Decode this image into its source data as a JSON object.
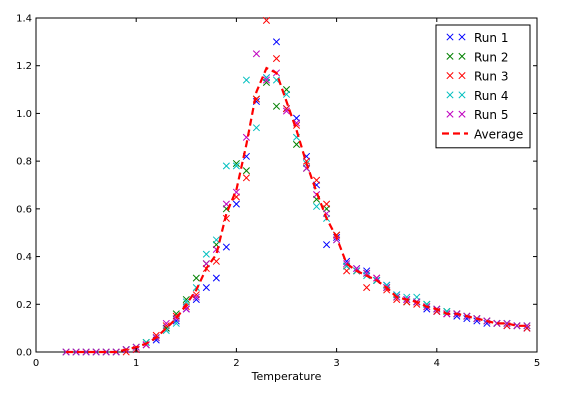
{
  "chart_data": {
    "type": "scatter",
    "xlabel": "Temperature",
    "ylabel": "",
    "xlim": [
      0,
      5
    ],
    "ylim": [
      0,
      1.4
    ],
    "xticks": [
      0,
      1,
      2,
      3,
      4,
      5
    ],
    "yticks": [
      0.0,
      0.2,
      0.4,
      0.6,
      0.8,
      1.0,
      1.2,
      1.4
    ],
    "grid": false,
    "legend_position": "top-right",
    "series": [
      {
        "name": "Run 1",
        "color": "#0000ff",
        "marker": "x",
        "x": [
          0.3,
          0.4,
          0.5,
          0.6,
          0.7,
          0.8,
          0.9,
          1.0,
          1.1,
          1.2,
          1.3,
          1.4,
          1.5,
          1.6,
          1.7,
          1.8,
          1.9,
          2.0,
          2.1,
          2.2,
          2.3,
          2.4,
          2.5,
          2.6,
          2.7,
          2.8,
          2.9,
          3.0,
          3.1,
          3.2,
          3.3,
          3.4,
          3.5,
          3.6,
          3.7,
          3.8,
          3.9,
          4.0,
          4.1,
          4.2,
          4.3,
          4.4,
          4.5,
          4.6,
          4.7,
          4.8,
          4.9
        ],
        "y": [
          0.0,
          0.0,
          0.0,
          0.0,
          0.0,
          0.0,
          0.01,
          0.01,
          0.03,
          0.05,
          0.1,
          0.13,
          0.18,
          0.22,
          0.27,
          0.31,
          0.44,
          0.62,
          0.82,
          1.05,
          1.15,
          1.3,
          1.02,
          0.98,
          0.82,
          0.7,
          0.45,
          0.48,
          0.38,
          0.35,
          0.34,
          0.3,
          0.28,
          0.24,
          0.22,
          0.21,
          0.18,
          0.17,
          0.16,
          0.15,
          0.14,
          0.13,
          0.12,
          0.12,
          0.11,
          0.11,
          0.1
        ]
      },
      {
        "name": "Run 2",
        "color": "#008000",
        "marker": "x",
        "x": [
          0.3,
          0.4,
          0.5,
          0.6,
          0.7,
          0.8,
          0.9,
          1.0,
          1.1,
          1.2,
          1.3,
          1.4,
          1.5,
          1.6,
          1.7,
          1.8,
          1.9,
          2.0,
          2.1,
          2.2,
          2.3,
          2.4,
          2.5,
          2.6,
          2.7,
          2.8,
          2.9,
          3.0,
          3.1,
          3.2,
          3.3,
          3.4,
          3.5,
          3.6,
          3.7,
          3.8,
          3.9,
          4.0,
          4.1,
          4.2,
          4.3,
          4.4,
          4.5,
          4.6,
          4.7,
          4.8,
          4.9
        ],
        "y": [
          0.0,
          0.0,
          0.0,
          0.0,
          0.0,
          0.0,
          0.01,
          0.02,
          0.04,
          0.06,
          0.1,
          0.16,
          0.22,
          0.31,
          0.37,
          0.45,
          0.6,
          0.79,
          0.76,
          1.06,
          1.13,
          1.03,
          1.1,
          0.87,
          0.77,
          0.64,
          0.6,
          0.49,
          0.36,
          0.34,
          0.33,
          0.3,
          0.27,
          0.23,
          0.21,
          0.21,
          0.2,
          0.18,
          0.17,
          0.16,
          0.15,
          0.14,
          0.13,
          0.12,
          0.12,
          0.11,
          0.11
        ]
      },
      {
        "name": "Run 3",
        "color": "#ff0000",
        "marker": "x",
        "x": [
          0.3,
          0.4,
          0.5,
          0.6,
          0.7,
          0.8,
          0.9,
          1.0,
          1.1,
          1.2,
          1.3,
          1.4,
          1.5,
          1.6,
          1.7,
          1.8,
          1.9,
          2.0,
          2.1,
          2.2,
          2.3,
          2.4,
          2.5,
          2.6,
          2.7,
          2.8,
          2.9,
          3.0,
          3.1,
          3.2,
          3.3,
          3.4,
          3.5,
          3.6,
          3.7,
          3.8,
          3.9,
          4.0,
          4.1,
          4.2,
          4.3,
          4.4,
          4.5,
          4.6,
          4.7,
          4.8,
          4.9
        ],
        "y": [
          0.0,
          0.0,
          0.0,
          0.0,
          0.0,
          0.0,
          0.0,
          0.01,
          0.03,
          0.07,
          0.11,
          0.15,
          0.19,
          0.24,
          0.35,
          0.38,
          0.56,
          0.65,
          0.73,
          1.06,
          1.39,
          1.23,
          1.02,
          0.95,
          0.8,
          0.72,
          0.62,
          0.49,
          0.34,
          0.34,
          0.27,
          0.31,
          0.26,
          0.22,
          0.21,
          0.2,
          0.19,
          0.17,
          0.16,
          0.16,
          0.15,
          0.14,
          0.13,
          0.12,
          0.11,
          0.11,
          0.1
        ]
      },
      {
        "name": "Run 4",
        "color": "#00bfbf",
        "marker": "x",
        "x": [
          0.3,
          0.4,
          0.5,
          0.6,
          0.7,
          0.8,
          0.9,
          1.0,
          1.1,
          1.2,
          1.3,
          1.4,
          1.5,
          1.6,
          1.7,
          1.8,
          1.9,
          2.0,
          2.1,
          2.2,
          2.3,
          2.4,
          2.5,
          2.6,
          2.7,
          2.8,
          2.9,
          3.0,
          3.1,
          3.2,
          3.3,
          3.4,
          3.5,
          3.6,
          3.7,
          3.8,
          3.9,
          4.0,
          4.1,
          4.2,
          4.3,
          4.4,
          4.5,
          4.6,
          4.7,
          4.8,
          4.9
        ],
        "y": [
          0.0,
          0.0,
          0.0,
          0.0,
          0.0,
          0.0,
          0.01,
          0.02,
          0.04,
          0.06,
          0.09,
          0.12,
          0.21,
          0.27,
          0.41,
          0.47,
          0.78,
          0.78,
          1.14,
          0.94,
          1.15,
          1.14,
          1.08,
          0.9,
          0.79,
          0.61,
          0.56,
          0.47,
          0.36,
          0.34,
          0.32,
          0.3,
          0.28,
          0.24,
          0.23,
          0.23,
          0.2,
          0.18,
          0.17,
          0.16,
          0.15,
          0.14,
          0.13,
          0.12,
          0.12,
          0.11,
          0.11
        ]
      },
      {
        "name": "Run 5",
        "color": "#bf00bf",
        "marker": "x",
        "x": [
          0.3,
          0.4,
          0.5,
          0.6,
          0.7,
          0.8,
          0.9,
          1.0,
          1.1,
          1.2,
          1.3,
          1.4,
          1.5,
          1.6,
          1.7,
          1.8,
          1.9,
          2.0,
          2.1,
          2.2,
          2.3,
          2.4,
          2.5,
          2.6,
          2.7,
          2.8,
          2.9,
          3.0,
          3.1,
          3.2,
          3.3,
          3.4,
          3.5,
          3.6,
          3.7,
          3.8,
          3.9,
          4.0,
          4.1,
          4.2,
          4.3,
          4.4,
          4.5,
          4.6,
          4.7,
          4.8,
          4.9
        ],
        "y": [
          0.0,
          0.0,
          0.0,
          0.0,
          0.0,
          0.0,
          0.01,
          0.02,
          0.03,
          0.06,
          0.12,
          0.14,
          0.18,
          0.23,
          0.37,
          0.43,
          0.62,
          0.67,
          0.9,
          1.25,
          1.14,
          1.17,
          1.01,
          0.96,
          0.77,
          0.66,
          0.58,
          0.47,
          0.37,
          0.35,
          0.33,
          0.31,
          0.27,
          0.23,
          0.22,
          0.21,
          0.19,
          0.18,
          0.16,
          0.16,
          0.15,
          0.14,
          0.13,
          0.12,
          0.12,
          0.11,
          0.11
        ]
      },
      {
        "name": "Average",
        "color": "#ff0000",
        "marker": "dashed-line",
        "x": [
          0.3,
          0.4,
          0.5,
          0.6,
          0.7,
          0.8,
          0.9,
          1.0,
          1.1,
          1.2,
          1.3,
          1.4,
          1.5,
          1.6,
          1.7,
          1.8,
          1.9,
          2.0,
          2.1,
          2.2,
          2.3,
          2.4,
          2.5,
          2.6,
          2.7,
          2.8,
          2.9,
          3.0,
          3.1,
          3.2,
          3.3,
          3.4,
          3.5,
          3.6,
          3.7,
          3.8,
          3.9,
          4.0,
          4.1,
          4.2,
          4.3,
          4.4,
          4.5,
          4.6,
          4.7,
          4.8,
          4.9
        ],
        "y": [
          0.0,
          0.0,
          0.0,
          0.0,
          0.0,
          0.0,
          0.01,
          0.02,
          0.035,
          0.06,
          0.1,
          0.14,
          0.2,
          0.26,
          0.35,
          0.41,
          0.58,
          0.68,
          0.87,
          1.09,
          1.19,
          1.17,
          1.05,
          0.93,
          0.79,
          0.67,
          0.56,
          0.48,
          0.37,
          0.34,
          0.32,
          0.3,
          0.27,
          0.23,
          0.22,
          0.21,
          0.19,
          0.18,
          0.16,
          0.16,
          0.15,
          0.14,
          0.13,
          0.12,
          0.12,
          0.11,
          0.11
        ]
      }
    ]
  }
}
